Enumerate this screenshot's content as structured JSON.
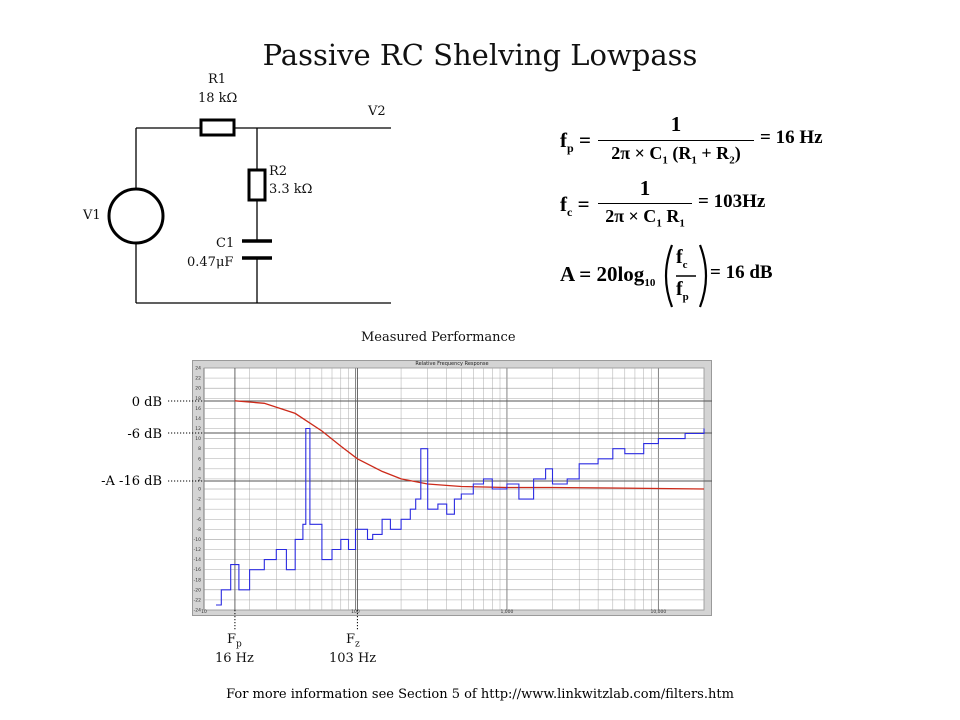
{
  "slide": {
    "title": "Passive RC Shelving Lowpass",
    "footer": "For more information see Section 5 of http://www.linkwitzlab.com/filters.htm"
  },
  "circuit": {
    "r1_name": "R1",
    "r1_value": "18 kΩ",
    "r2_name": "R2",
    "r2_value": "3.3 kΩ",
    "c1_name": "C1",
    "c1_value": "0.47μF",
    "v1_label": "V1",
    "v2_label": "V2"
  },
  "equations": {
    "fp_lhs_main": "f",
    "fp_lhs_sub": "p",
    "fp_numerator": "1",
    "fp_den_a": "2π × C",
    "fp_den_a_sub": "1",
    "fp_den_b": " (R",
    "fp_den_b_sub": "1",
    "fp_den_c": " + R",
    "fp_den_c_sub": "2",
    "fp_den_d": ")",
    "fp_result": "= 16 Hz",
    "fc_lhs_main": "f",
    "fc_lhs_sub": "c",
    "fc_numerator": "1",
    "fc_den_a": "2π × C",
    "fc_den_a_sub": "1",
    "fc_den_b": " R",
    "fc_den_b_sub": "1",
    "fc_result": "= 103Hz",
    "a_lhs": "A = 20log",
    "a_lhs_sub": "10",
    "a_num": "f",
    "a_num_sub": "c",
    "a_den": "f",
    "a_den_sub": "p",
    "a_result": "= 16 dB"
  },
  "measured": {
    "label": "Measured  Performance",
    "plot_title": "Relative Frequency Response",
    "level_labels": [
      "0 dB",
      "-6 dB",
      "-A  -16 dB"
    ],
    "fp_label_main": "F",
    "fp_label_sub": "p",
    "fp_freq": "16 Hz",
    "fz_label_main": "F",
    "fz_label_sub": "z",
    "fz_freq": "103 Hz",
    "x_tick_labels": [
      "10",
      "100",
      "1,000",
      "10,000"
    ],
    "y_tick_labels": [
      "24",
      "22",
      "20",
      "18",
      "16",
      "14",
      "12",
      "10",
      "8",
      "6",
      "4",
      "2",
      "0",
      "-2",
      "-4",
      "-6",
      "-8",
      "-10",
      "-12",
      "-14",
      "-16",
      "-18",
      "-20",
      "-22",
      "-24"
    ],
    "colors": {
      "red_trace": "#cc2a1a",
      "blue_trace": "#2b2be0",
      "grid": "#aaaaaa",
      "plot_bg": "#ffffff"
    }
  },
  "chart_data": {
    "type": "line",
    "title": "Relative Frequency Response",
    "x_scale": "log",
    "xlim": [
      10,
      20000
    ],
    "ylim": [
      -24,
      24
    ],
    "series": [
      {
        "x": [
          16,
          25,
          40,
          60,
          80,
          103,
          150,
          200,
          300,
          500,
          1000,
          2000,
          5000,
          10000,
          20000
        ],
        "values": [
          17.5,
          17,
          15,
          11.5,
          8.5,
          6,
          3.5,
          2,
          1,
          0.5,
          0.3,
          0.3,
          0.2,
          0.1,
          0
        ]
      },
      {
        "x": [
          12,
          13,
          15,
          17,
          20,
          25,
          30,
          35,
          40,
          45,
          47,
          50,
          60,
          70,
          80,
          90,
          100,
          120,
          130,
          150,
          170,
          200,
          230,
          250,
          270,
          300,
          350,
          400,
          450,
          500,
          600,
          700,
          800,
          1000,
          1200,
          1500,
          1800,
          2000,
          2500,
          3000,
          4000,
          5000,
          6000,
          8000,
          10000,
          15000,
          20000
        ],
        "values": [
          -23,
          -20,
          -15,
          -20,
          -16,
          -14,
          -12,
          -16,
          -10,
          -7,
          12,
          -7,
          -14,
          -12,
          -10,
          -12,
          -8,
          -10,
          -9,
          -6,
          -8,
          -6,
          -4,
          -2,
          8,
          -4,
          -3,
          -5,
          -2,
          -1,
          1,
          2,
          0,
          1,
          -2,
          2,
          4,
          1,
          2,
          5,
          6,
          8,
          7,
          9,
          10,
          11,
          12
        ]
      }
    ]
  }
}
